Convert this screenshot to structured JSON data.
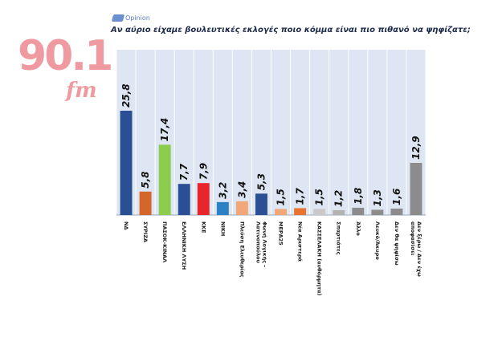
{
  "brand": {
    "text": "Opinion"
  },
  "logo": {
    "number": "90.1",
    "suffix": "fm",
    "color": "#ef9aa0"
  },
  "chart_data": {
    "type": "bar",
    "title": "Αν αύριο είχαμε βουλευτικές εκλογές ποιο κόμμα είναι πιο πιθανό να ψηφίζατε;",
    "categories": [
      "ΝΔ",
      "ΣΥΡΙΖΑ",
      "ΠΑΣΟΚ-ΚΙΝΑΛ",
      "ΕΛΛΗΝΙΚΗ ΛΥΣΗ",
      "ΚΚΕ",
      "ΝΙΚΗ",
      "Πλεύση Ελευθερίας",
      "Φωνή Λογικής - Λατινοπούλου",
      "ΜΕΡΑ25",
      "Νέα Αριστερά",
      "ΚΑΣΣΕΛΑΚΗ (αυθόρμητα)",
      "Σπαρτιάτες",
      "Άλλο",
      "Λευκό/Άκυρο",
      "Δεν θα ψηφίσω",
      "Δεν ξέρω / Δεν έχω αποφασίσει"
    ],
    "value_labels": [
      "25,8",
      "5,8",
      "17,4",
      "7,7",
      "7,9",
      "3,2",
      "3,4",
      "5,3",
      "1,5",
      "1,7",
      "1,5",
      "1,2",
      "1,8",
      "1,3",
      "1,6",
      "12,9"
    ],
    "values": [
      25.8,
      5.8,
      17.4,
      7.7,
      7.9,
      3.2,
      3.4,
      5.3,
      1.5,
      1.7,
      1.5,
      1.2,
      1.8,
      1.3,
      1.6,
      12.9
    ],
    "colors": [
      "#2b4f95",
      "#d4662a",
      "#8ccc4e",
      "#2b4f95",
      "#e8242c",
      "#2c80c4",
      "#f2a779",
      "#2b4f95",
      "#f2a779",
      "#e8742f",
      "#c9c9c9",
      "#b3b3b3",
      "#8c8c8c",
      "#8c8c8c",
      "#8c8c8c",
      "#8c8c8c"
    ],
    "ylim": [
      0,
      30
    ],
    "grid": false,
    "legend": "none",
    "plot_background": "#dde6f2"
  }
}
